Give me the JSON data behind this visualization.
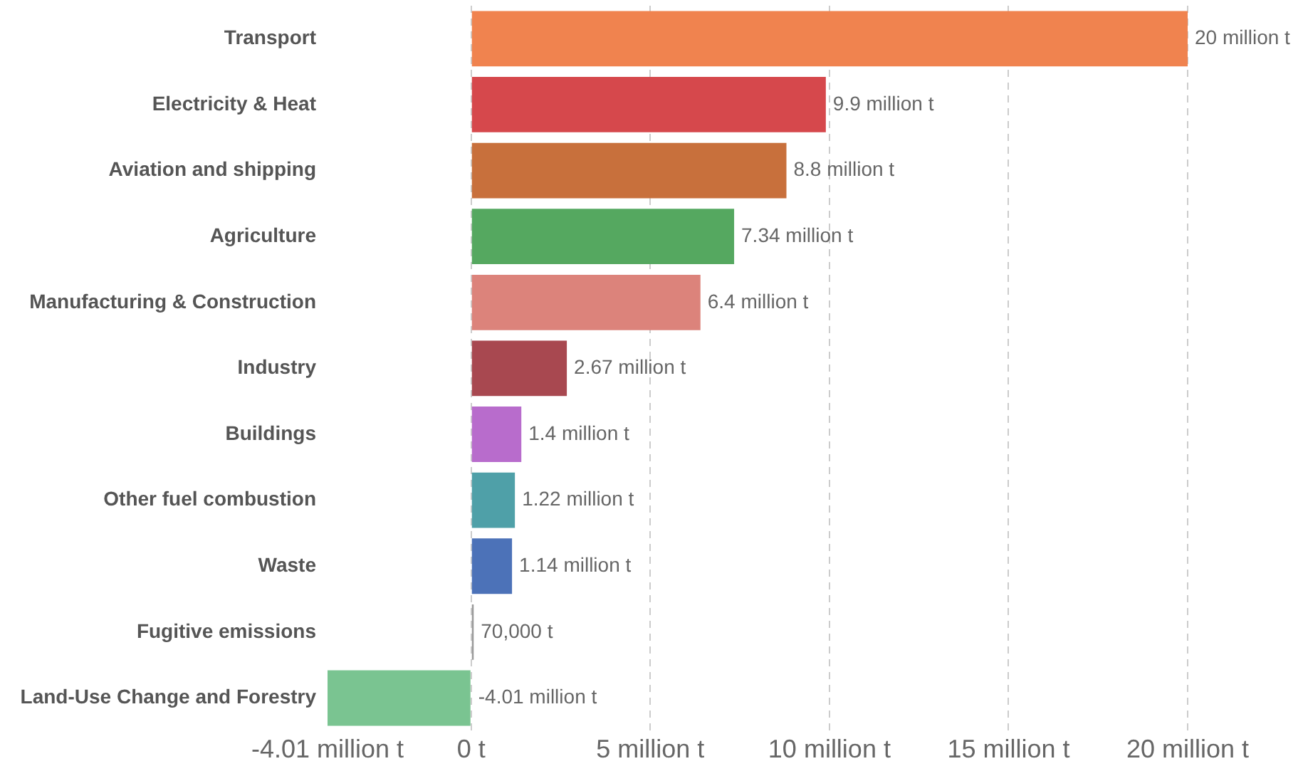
{
  "chart_data": {
    "type": "bar",
    "orientation": "horizontal",
    "categories": [
      "Transport",
      "Electricity & Heat",
      "Aviation and shipping",
      "Agriculture",
      "Manufacturing & Construction",
      "Industry",
      "Buildings",
      "Other fuel combustion",
      "Waste",
      "Fugitive emissions",
      "Land-Use Change and Forestry"
    ],
    "values": [
      20000000,
      9900000,
      8800000,
      7340000,
      6400000,
      2670000,
      1400000,
      1220000,
      1140000,
      70000,
      -4010000
    ],
    "colors": [
      "#f0834f",
      "#d6484c",
      "#c8703c",
      "#55a860",
      "#dc837b",
      "#a84850",
      "#b86ccc",
      "#4fa0a8",
      "#4c72b8",
      "#9a9a9a",
      "#7ac491"
    ],
    "value_labels": [
      "20 million t",
      "9.9 million t",
      "8.8 million t",
      "7.34 million t",
      "6.4 million t",
      "2.67 million t",
      "1.4 million t",
      "1.22 million t",
      "1.14 million t",
      "70,000 t",
      "-4.01 million t"
    ],
    "xlim": [
      -4010000,
      20000000
    ],
    "xticks": [
      {
        "value": -4010000,
        "label": "-4.01 million t"
      },
      {
        "value": 0,
        "label": "0 t"
      },
      {
        "value": 5000000,
        "label": "5 million t"
      },
      {
        "value": 10000000,
        "label": "10 million t"
      },
      {
        "value": 15000000,
        "label": "15 million t"
      },
      {
        "value": 20000000,
        "label": "20 million t"
      }
    ],
    "grid": "x",
    "legend": false
  }
}
